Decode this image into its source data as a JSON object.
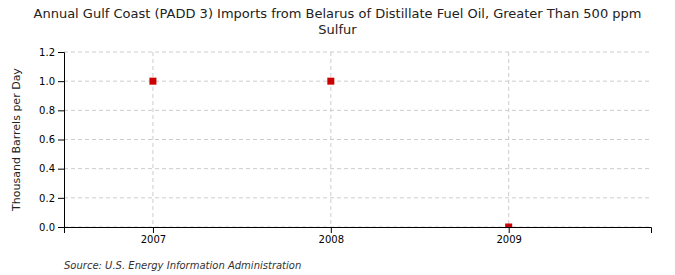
{
  "chart_data": {
    "type": "scatter",
    "title": "Annual Gulf Coast (PADD 3) Imports from Belarus of Distillate Fuel Oil, Greater Than 500 ppm\nSulfur",
    "y_label": "Thousand Barrels per Day",
    "annotations": [
      "Source: U.S. Energy Information Administration"
    ],
    "x": [
      2007,
      2008,
      2009
    ],
    "values": [
      1.0,
      1.0,
      0.0
    ],
    "color": "#CC0000",
    "marker": "square",
    "xlim": [
      2006.5,
      2009.8
    ],
    "ylim": [
      0.0,
      1.2
    ],
    "xticks": [
      2007,
      2008,
      2009
    ],
    "yticks": [
      {
        "value": 0.0,
        "label": "0.0"
      },
      0.2,
      0.4,
      0.6,
      0.8,
      {
        "value": 1.0,
        "label": "1.0"
      },
      1.2
    ],
    "grid": true
  }
}
